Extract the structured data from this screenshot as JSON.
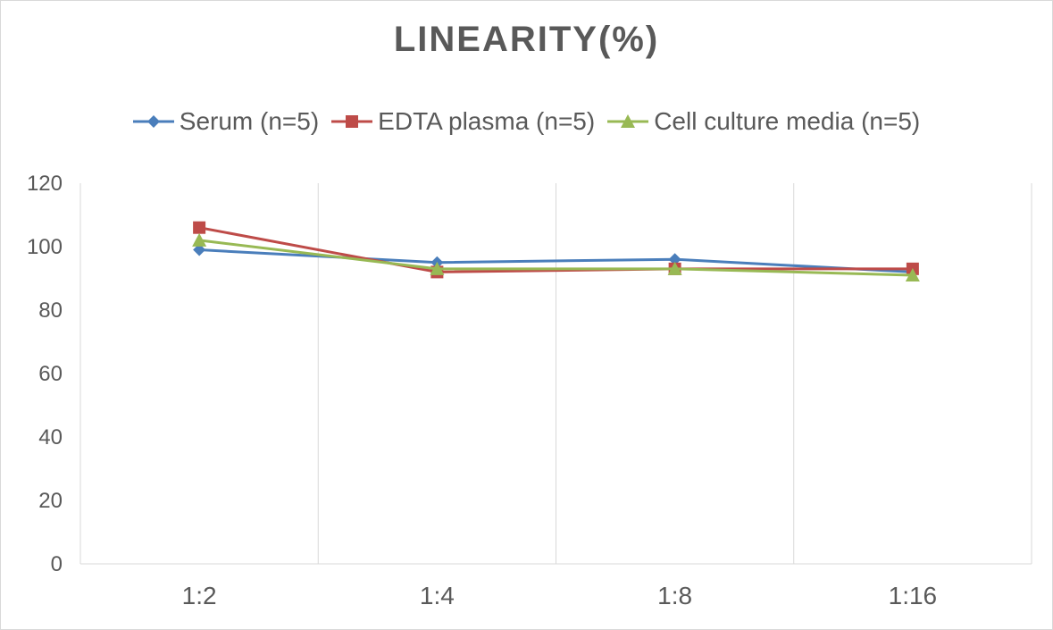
{
  "chart_data": {
    "type": "line",
    "title": "LINEARITY(%)",
    "xlabel": "",
    "ylabel": "",
    "categories": [
      "1:2",
      "1:4",
      "1:8",
      "1:16"
    ],
    "ylim": [
      0,
      120
    ],
    "yticks": [
      0,
      20,
      40,
      60,
      80,
      100,
      120
    ],
    "grid": "vertical",
    "legend_position": "top",
    "series": [
      {
        "name": "Serum (n=5)",
        "values": [
          99,
          95,
          96,
          92
        ],
        "color": "#4a7ebb",
        "marker": "diamond"
      },
      {
        "name": "EDTA plasma (n=5)",
        "values": [
          106,
          92,
          93,
          93
        ],
        "color": "#be4b48",
        "marker": "square"
      },
      {
        "name": "Cell culture media (n=5)",
        "values": [
          102,
          93,
          93,
          91
        ],
        "color": "#98b954",
        "marker": "triangle"
      }
    ]
  }
}
